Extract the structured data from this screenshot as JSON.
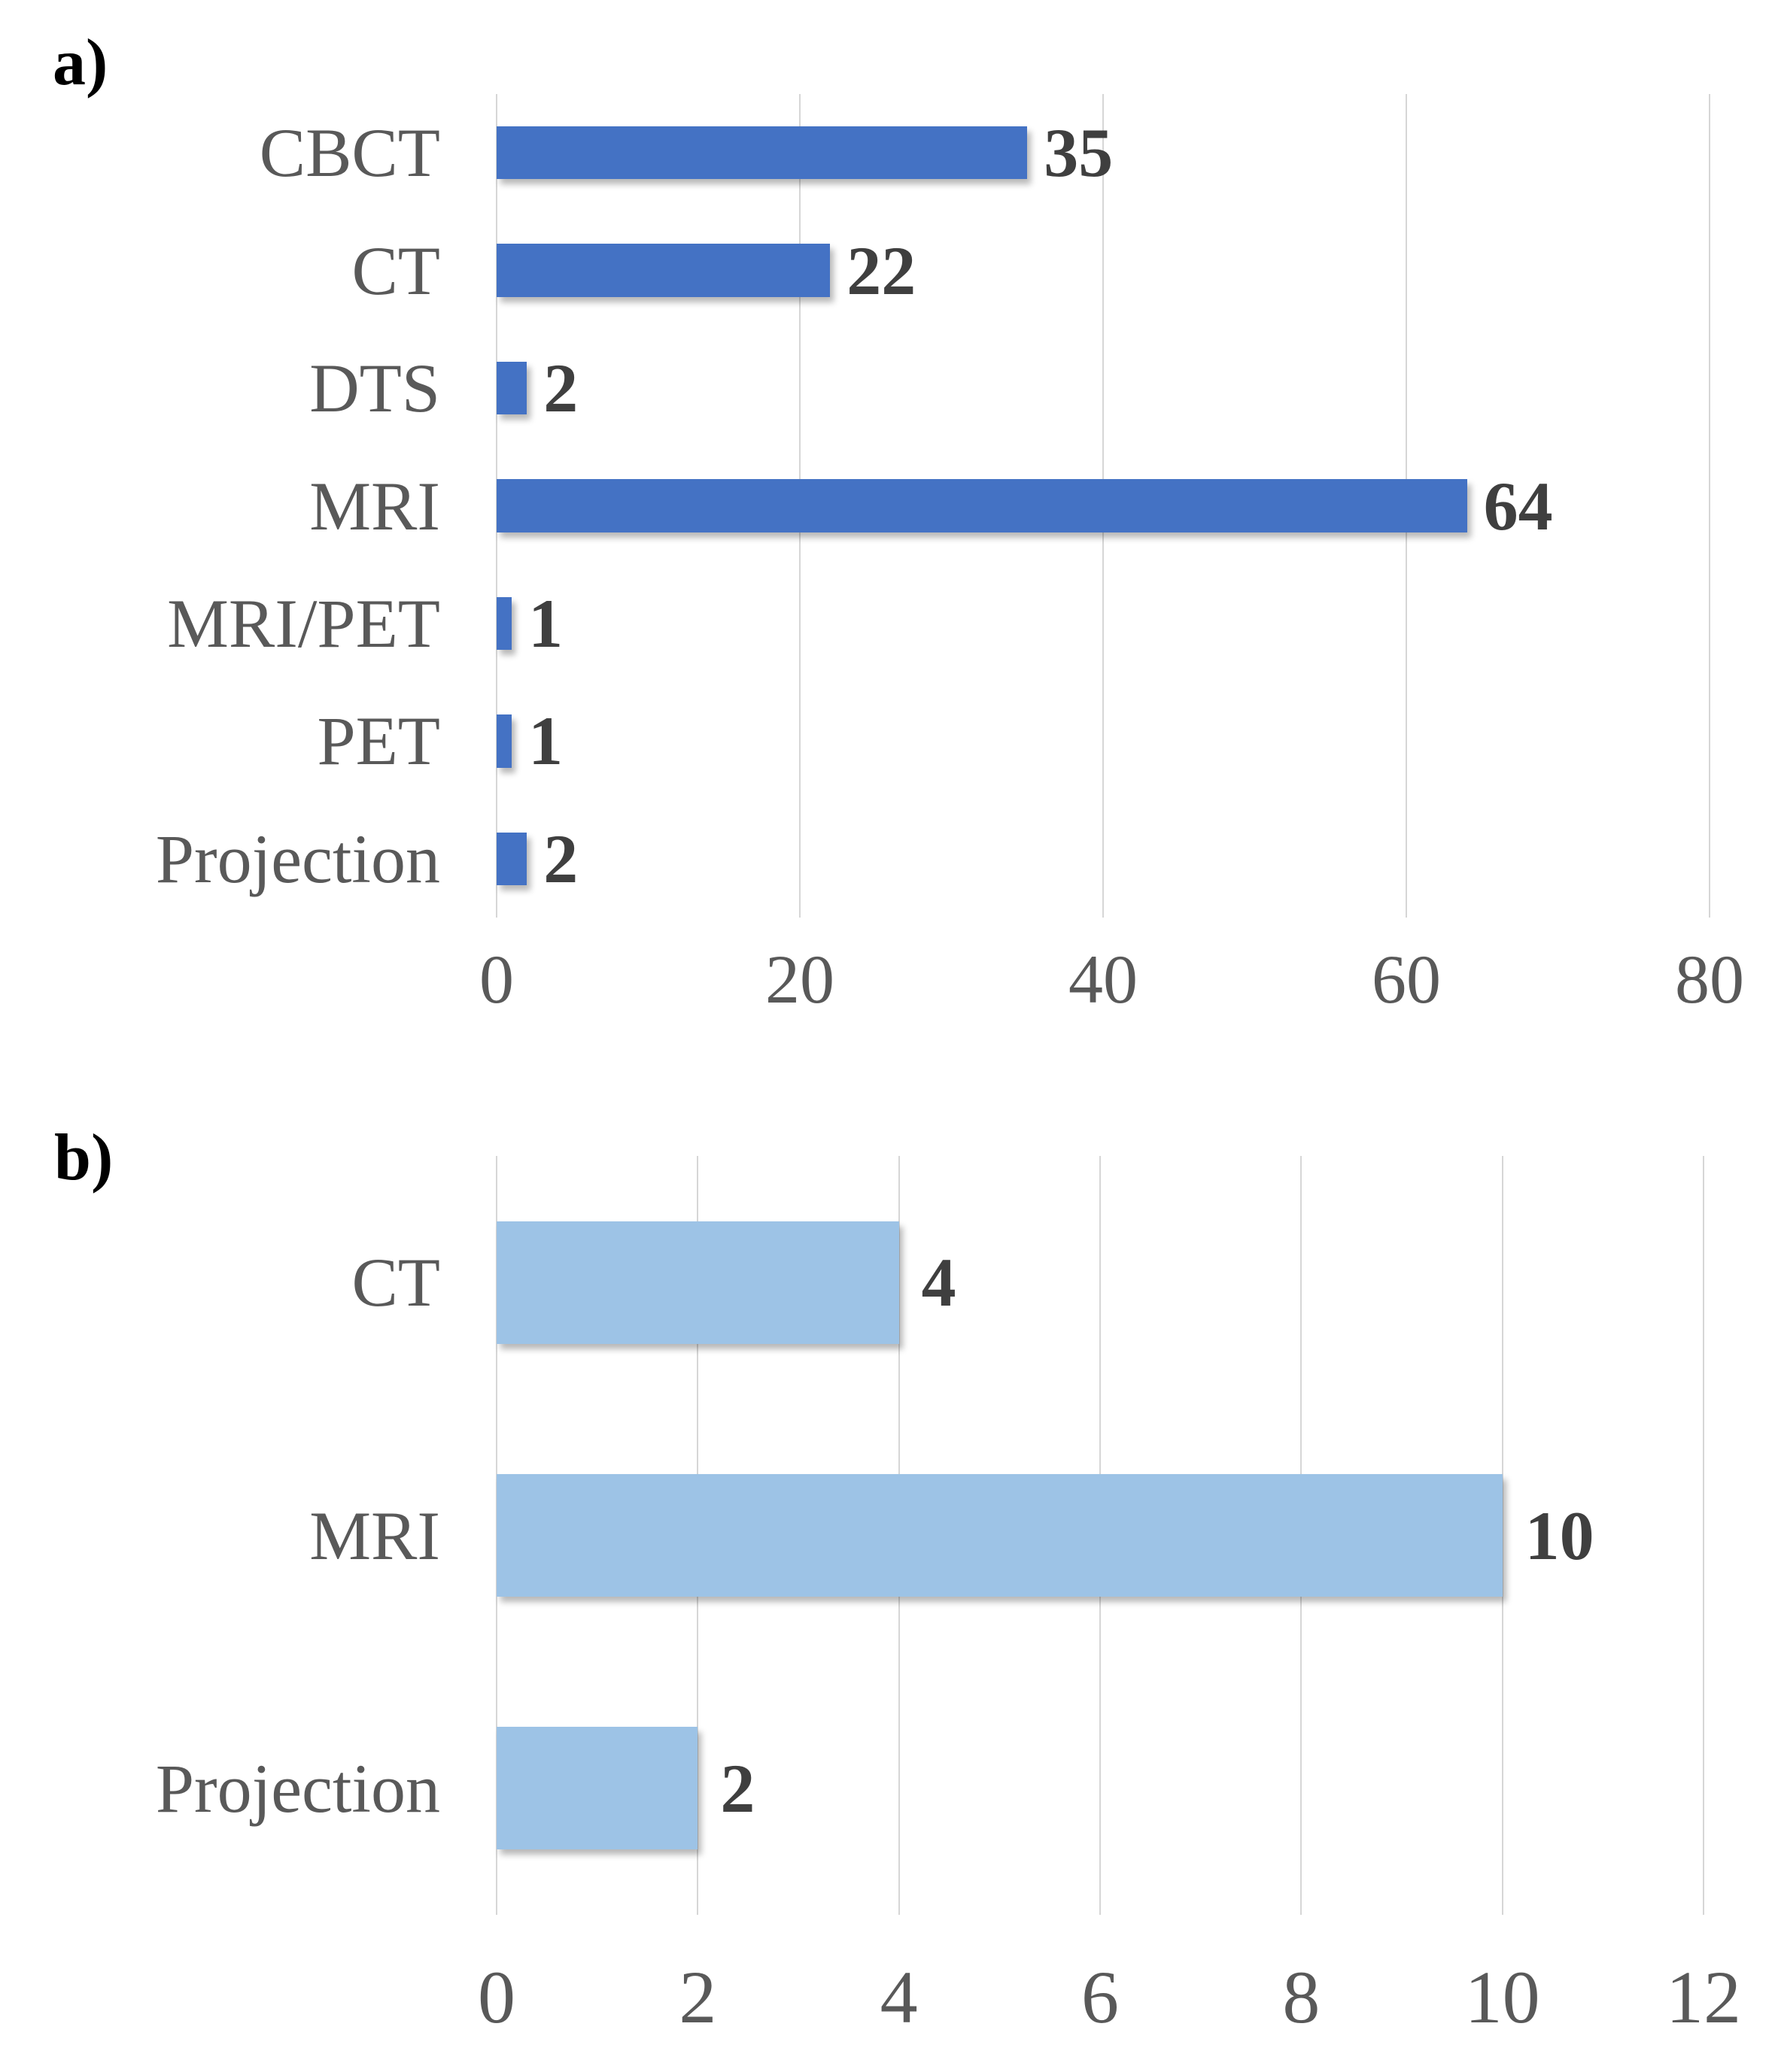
{
  "colors": {
    "bar_panel_a": "#4472C4",
    "bar_panel_b": "#9DC3E6",
    "gridline": "#D6D6D6",
    "category_text": "#595959",
    "tick_text": "#595959",
    "value_text": "#3F3F3F",
    "panel_label_text": "#000000",
    "background": "#FFFFFF"
  },
  "chart_data": [
    {
      "id": "a",
      "type": "bar",
      "orientation": "horizontal",
      "panel_label": "a)",
      "title": "",
      "xlabel": "",
      "ylabel": "",
      "categories": [
        "CBCT",
        "CT",
        "DTS",
        "MRI",
        "MRI/PET",
        "PET",
        "Projection"
      ],
      "values": [
        35,
        22,
        2,
        64,
        1,
        1,
        2
      ],
      "value_labels": [
        "35",
        "22",
        "2",
        "64",
        "1",
        "1",
        "2"
      ],
      "xlim": [
        0,
        80
      ],
      "xticks": [
        0,
        20,
        40,
        60,
        80
      ],
      "bar_color": "#4472C4",
      "grid": true,
      "legend": "none"
    },
    {
      "id": "b",
      "type": "bar",
      "orientation": "horizontal",
      "panel_label": "b)",
      "title": "",
      "xlabel": "",
      "ylabel": "",
      "categories": [
        "CT",
        "MRI",
        "Projection"
      ],
      "values": [
        4,
        10,
        2
      ],
      "value_labels": [
        "4",
        "10",
        "2"
      ],
      "xlim": [
        0,
        12
      ],
      "xticks": [
        0,
        2,
        4,
        6,
        8,
        10,
        12
      ],
      "bar_color": "#9DC3E6",
      "grid": true,
      "legend": "none"
    }
  ]
}
